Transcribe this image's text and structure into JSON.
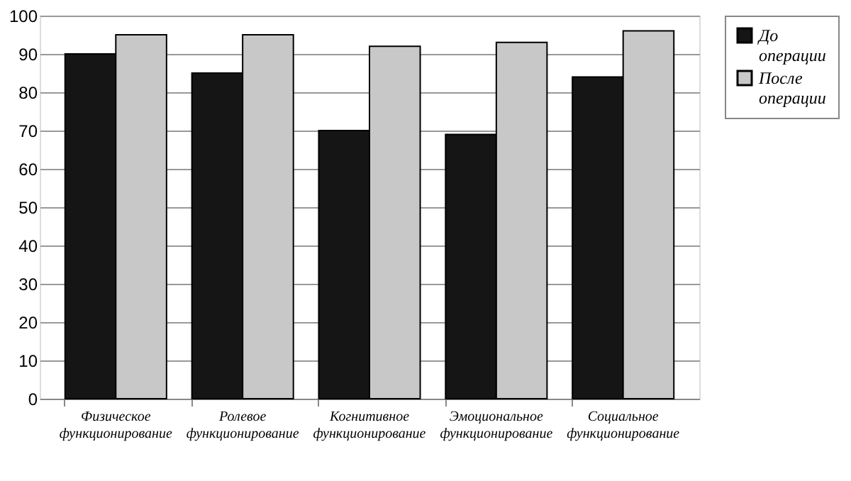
{
  "chart_data": {
    "type": "bar",
    "categories": [
      "Физическое функционирование",
      "Ролевое функционирование",
      "Когнитивное функционирование",
      "Эмоциональное функционирование",
      "Социальное функционирование"
    ],
    "series": [
      {
        "name": "До операции",
        "color": "#151515",
        "values": [
          90,
          85,
          70,
          69,
          84
        ]
      },
      {
        "name": "После операции",
        "color": "#c8c8c8",
        "values": [
          95,
          95,
          92,
          93,
          96
        ]
      }
    ],
    "ylim": [
      0,
      100
    ],
    "yticks": [
      0,
      10,
      20,
      30,
      40,
      50,
      60,
      70,
      80,
      90,
      100
    ],
    "grid": "y",
    "legend": "right"
  }
}
